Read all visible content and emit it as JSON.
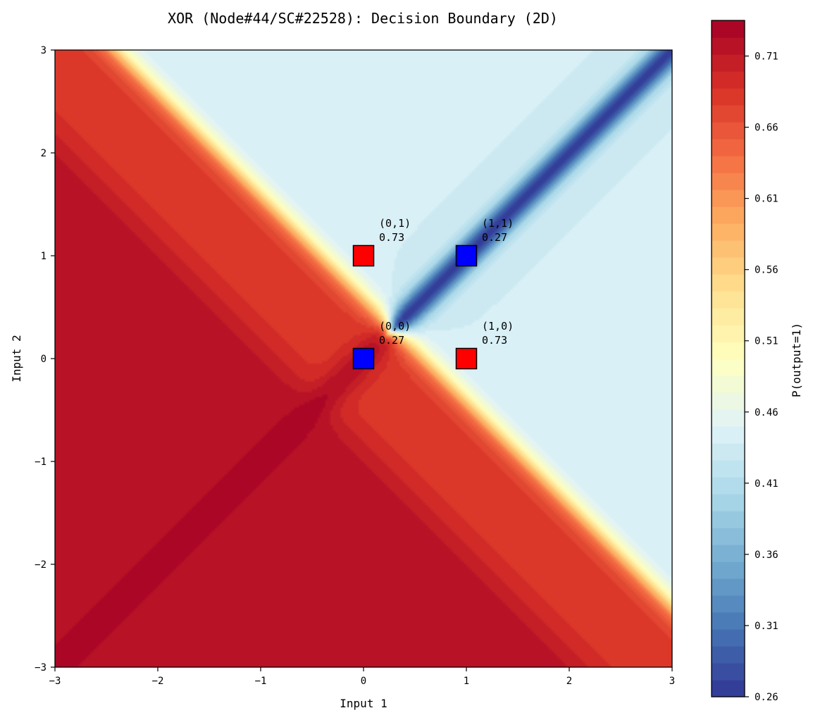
{
  "chart_data": {
    "type": "heatmap",
    "title": "XOR (Node#44/SC#22528): Decision Boundary (2D)",
    "xlabel": "Input 1",
    "ylabel": "Input 2",
    "xlim": [
      -3,
      3
    ],
    "ylim": [
      -3,
      3
    ],
    "x_ticks": [
      -3,
      -2,
      -1,
      0,
      1,
      2,
      3
    ],
    "y_ticks": [
      -3,
      -2,
      -1,
      0,
      1,
      2,
      3
    ],
    "colorbar": {
      "label": "P(output=1)",
      "range": [
        0.26,
        0.735
      ],
      "ticks": [
        "0.26",
        "0.31",
        "0.36",
        "0.41",
        "0.46",
        "0.51",
        "0.56",
        "0.61",
        "0.66",
        "0.71"
      ],
      "colormap": "RdYlBu_r",
      "colors": [
        "#313695",
        "#4575b4",
        "#74add1",
        "#abd9e9",
        "#e0f3f8",
        "#ffffbf",
        "#fee090",
        "#fdae61",
        "#f46d43",
        "#d73027",
        "#a50026"
      ]
    },
    "points": [
      {
        "x": 0,
        "y": 0,
        "label": "(0,0)",
        "value": "0.27",
        "color": "#0000ff"
      },
      {
        "x": 0,
        "y": 1,
        "label": "(0,1)",
        "value": "0.73",
        "color": "#ff0000"
      },
      {
        "x": 1,
        "y": 0,
        "label": "(1,0)",
        "value": "0.73",
        "color": "#ff0000"
      },
      {
        "x": 1,
        "y": 1,
        "label": "(1,1)",
        "value": "0.27",
        "color": "#0000ff"
      }
    ],
    "grid": false
  }
}
